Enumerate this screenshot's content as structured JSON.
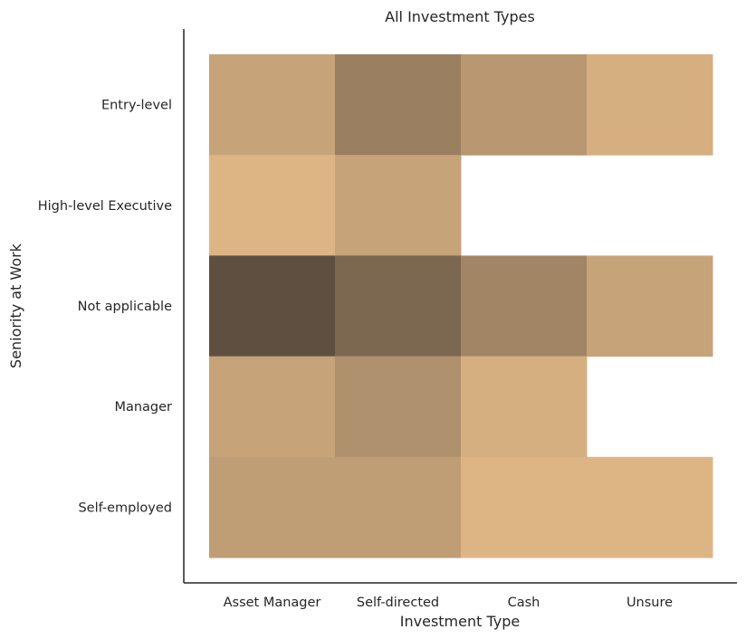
{
  "chart_data": {
    "type": "heatmap",
    "title": "All Investment Types",
    "xlabel": "Investment Type",
    "ylabel": "Seniority at Work",
    "x_categories": [
      "Asset Manager",
      "Self-directed",
      "Cash",
      "Unsure"
    ],
    "y_categories": [
      "Entry-level",
      "High-level Executive",
      "Not applicable",
      "Manager",
      "Self-employed"
    ],
    "values": [
      [
        2,
        5,
        3,
        1
      ],
      [
        0.5,
        2,
        null,
        null
      ],
      [
        9,
        7,
        4.5,
        2
      ],
      [
        2,
        3.5,
        1,
        null
      ],
      [
        2.5,
        2.5,
        0.5,
        0.5
      ]
    ],
    "grid": false,
    "legend": "none",
    "colors": {
      "low": "#ddb585",
      "high": "#5e4f41"
    }
  }
}
